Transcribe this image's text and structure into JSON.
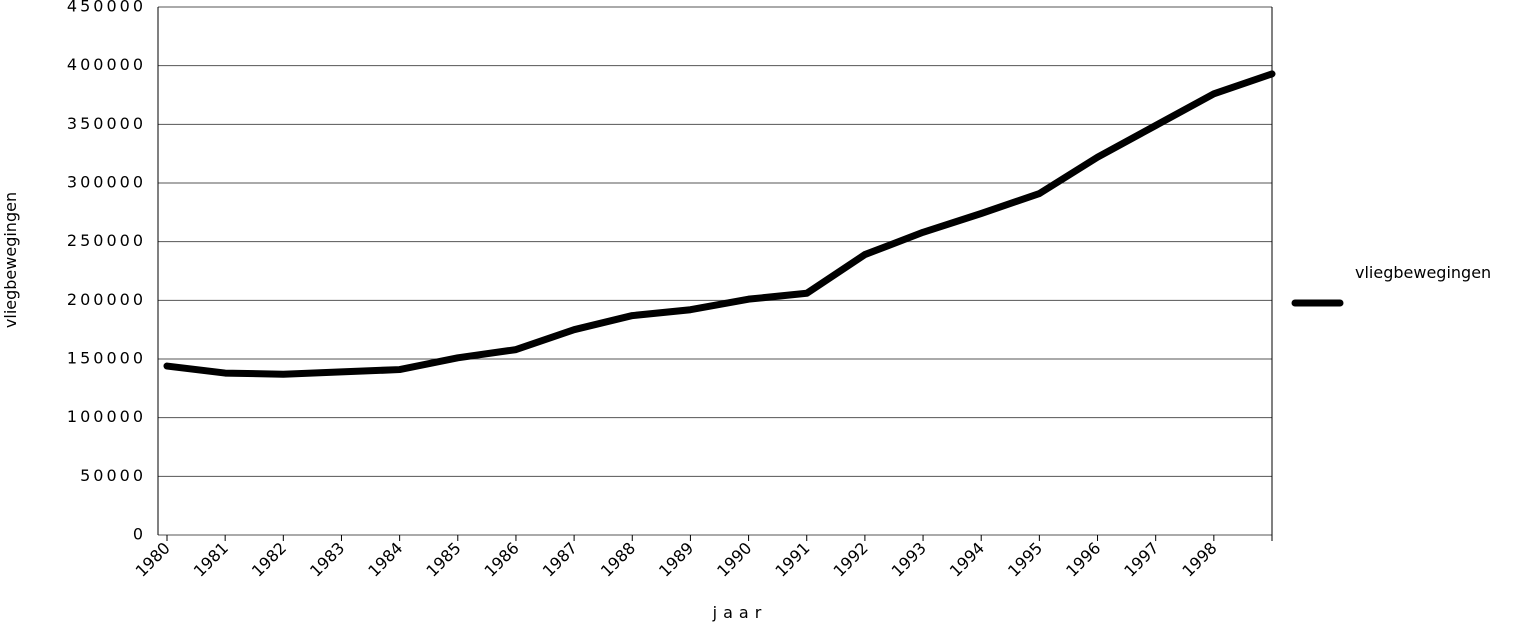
{
  "chart_data": {
    "type": "line",
    "x_label": "jaar",
    "y_label": "vliegbewegingen",
    "categories": [
      "1980",
      "1981",
      "1982",
      "1983",
      "1984",
      "1985",
      "1986",
      "1987",
      "1988",
      "1989",
      "1990",
      "1991",
      "1992",
      "1993",
      "1994",
      "1995",
      "1996",
      "1997",
      "1998",
      null
    ],
    "series": [
      {
        "name": "vliegbewegingen",
        "color": "#000000",
        "values": [
          144000,
          138000,
          137000,
          139000,
          141000,
          151000,
          158000,
          175000,
          187000,
          192000,
          201000,
          206000,
          239000,
          258000,
          274000,
          291000,
          322000,
          349000,
          376000,
          393000
        ]
      }
    ],
    "ylim": [
      0,
      450000
    ],
    "yticks": [
      0,
      50000,
      100000,
      150000,
      200000,
      250000,
      300000,
      350000,
      400000,
      450000
    ],
    "grid": true,
    "legend": "right"
  }
}
